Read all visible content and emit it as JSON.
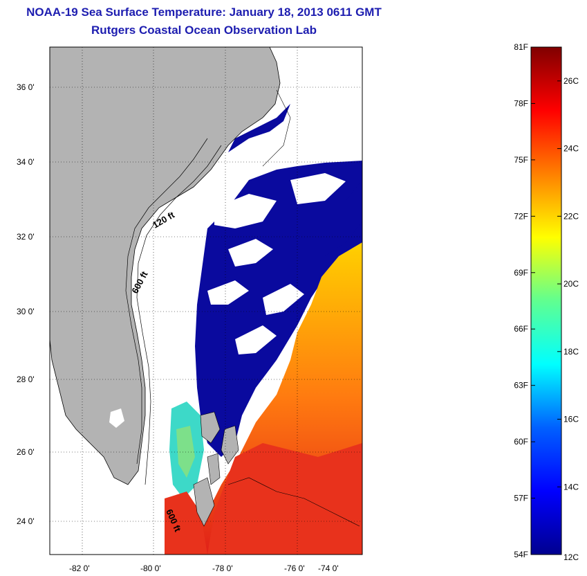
{
  "title": "NOAA-19 Sea Surface Temperature:  January 18, 2013 0611 GMT",
  "subtitle": "Rutgers Coastal Ocean Observation Lab",
  "map": {
    "lat_ticks": [
      "36 0'",
      "34 0'",
      "32 0'",
      "30 0'",
      "28 0'",
      "26 0'",
      "24 0'"
    ],
    "lon_ticks": [
      "-82 0'",
      "-80 0'",
      "-78 0'",
      "-76 0'",
      "-74 0'"
    ],
    "contour_labels": [
      "120 ft",
      "600 ft",
      "600 ft"
    ],
    "colors": {
      "land": "#b3b3b3",
      "cold": "#0a0a9e",
      "warm": "#e8321c"
    }
  },
  "colorbar": {
    "fahrenheit_labels": [
      "81F",
      "78F",
      "75F",
      "72F",
      "69F",
      "66F",
      "63F",
      "60F",
      "57F",
      "54F"
    ],
    "celsius_labels": [
      "26C",
      "24C",
      "22C",
      "20C",
      "18C",
      "16C",
      "14C",
      "12C"
    ],
    "range_f": [
      54,
      81
    ],
    "range_c": [
      12,
      27
    ]
  }
}
